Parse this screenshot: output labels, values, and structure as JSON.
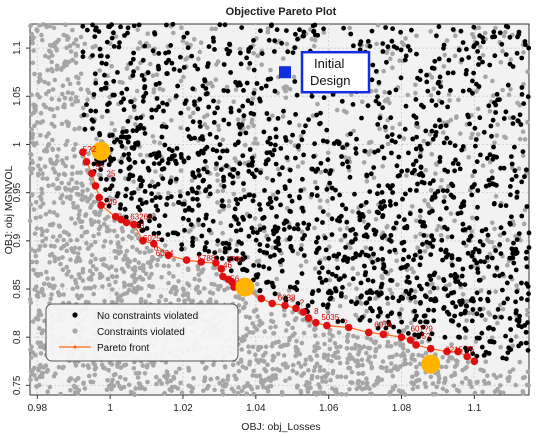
{
  "chart_data": {
    "type": "scatter",
    "title": "Objective Pareto Plot",
    "xlabel": "OBJ: obj_Losses",
    "ylabel": "OBJ: obj MGNVOL",
    "xlim": [
      0.978,
      1.115
    ],
    "ylim": [
      0.74,
      1.125
    ],
    "xticks": [
      0.98,
      1,
      1.02,
      1.04,
      1.06,
      1.08,
      1.1
    ],
    "xtick_labels": [
      "0.98",
      "1",
      "1.02",
      "1.04",
      "1.06",
      "1.08",
      "1.1"
    ],
    "yticks": [
      0.75,
      0.8,
      0.85,
      0.9,
      0.95,
      1,
      1.05,
      1.1
    ],
    "ytick_labels": [
      "0.75",
      "0.8",
      "0.85",
      "0.9",
      "0.95",
      "1",
      "1.05",
      "1.1"
    ],
    "grid": true,
    "legend_position": "bottom-left",
    "colors": {
      "no_violation": "#000000",
      "violated": "#a6a6a6",
      "pareto_line": "#ff6a1a",
      "pareto_points": "#e01010",
      "highlight": "#ffb400",
      "initial_design": "#1030e0",
      "plot_background": "#f2f2f2"
    },
    "series": [
      {
        "name": "No constraints violated",
        "marker": "dot",
        "region": "upper-right of the Pareto front",
        "sample_points": [
          [
            1.0,
            1.02
          ],
          [
            1.02,
            0.98
          ],
          [
            1.03,
            0.95
          ],
          [
            1.05,
            0.92
          ],
          [
            1.07,
            0.9
          ],
          [
            1.09,
            0.88
          ],
          [
            1.1,
            0.85
          ],
          [
            1.06,
            1.0
          ],
          [
            1.08,
            1.05
          ],
          [
            1.1,
            1.1
          ]
        ]
      },
      {
        "name": "Constraints violated",
        "marker": "dot",
        "region": "everywhere, densest below the Pareto front",
        "sample_points": [
          [
            0.985,
            0.98
          ],
          [
            0.99,
            0.9
          ],
          [
            1.0,
            0.85
          ],
          [
            1.02,
            0.8
          ],
          [
            1.05,
            0.77
          ],
          [
            1.08,
            0.76
          ],
          [
            0.99,
            1.08
          ],
          [
            1.01,
            1.05
          ]
        ]
      },
      {
        "name": "Pareto front",
        "marker": "line+dot",
        "points": [
          [
            0.9925,
            0.992
          ],
          [
            0.9935,
            0.982
          ],
          [
            0.995,
            0.97
          ],
          [
            0.996,
            0.957
          ],
          [
            0.997,
            0.945
          ],
          [
            0.9975,
            0.937
          ],
          [
            1.0015,
            0.925
          ],
          [
            1.003,
            0.922
          ],
          [
            1.0045,
            0.919
          ],
          [
            1.0065,
            0.917
          ],
          [
            1.009,
            0.9
          ],
          [
            1.012,
            0.897
          ],
          [
            1.016,
            0.885
          ],
          [
            1.021,
            0.88
          ],
          [
            1.025,
            0.878
          ],
          [
            1.029,
            0.877
          ],
          [
            1.0305,
            0.871
          ],
          [
            1.031,
            0.863
          ],
          [
            1.0325,
            0.86
          ],
          [
            1.0335,
            0.857
          ],
          [
            1.034,
            0.852
          ],
          [
            1.0365,
            0.851
          ],
          [
            1.0415,
            0.84
          ],
          [
            1.0445,
            0.835
          ],
          [
            1.048,
            0.833
          ],
          [
            1.051,
            0.83
          ],
          [
            1.053,
            0.826
          ],
          [
            1.0545,
            0.82
          ],
          [
            1.0565,
            0.815
          ],
          [
            1.0595,
            0.812
          ],
          [
            1.0655,
            0.81
          ],
          [
            1.071,
            0.805
          ],
          [
            1.075,
            0.803
          ],
          [
            1.08,
            0.8
          ],
          [
            1.0825,
            0.797
          ],
          [
            1.084,
            0.792
          ],
          [
            1.088,
            0.788
          ],
          [
            1.0925,
            0.785
          ],
          [
            1.0955,
            0.785
          ],
          [
            1.098,
            0.78
          ],
          [
            1.1,
            0.775
          ]
        ]
      }
    ],
    "highlighted_designs": [
      {
        "x": 0.9975,
        "y": 0.993
      },
      {
        "x": 1.037,
        "y": 0.852
      },
      {
        "x": 1.088,
        "y": 0.772
      }
    ],
    "initial_design": {
      "x": 1.048,
      "y": 1.075,
      "label_line1": "Initial",
      "label_line2": "Design"
    },
    "point_labels": [
      {
        "x": 0.9925,
        "y": 0.992,
        "text": "5?2"
      },
      {
        "x": 0.996,
        "y": 0.974,
        "text": "5?"
      },
      {
        "x": 0.999,
        "y": 0.967,
        "text": "25"
      },
      {
        "x": 0.997,
        "y": 0.937,
        "text": "5249"
      },
      {
        "x": 1.0055,
        "y": 0.922,
        "text": "63268"
      },
      {
        "x": 1.007,
        "y": 0.913,
        "text": "43"
      },
      {
        "x": 1.009,
        "y": 0.9,
        "text": "6025"
      },
      {
        "x": 1.012,
        "y": 0.89,
        "text": "6"
      },
      {
        "x": 1.0125,
        "y": 0.884,
        "text": "6024"
      },
      {
        "x": 1.024,
        "y": 0.879,
        "text": "5788"
      },
      {
        "x": 1.032,
        "y": 0.878,
        "text": "5?80"
      },
      {
        "x": 1.031,
        "y": 0.872,
        "text": "46"
      },
      {
        "x": 1.033,
        "y": 0.858,
        "text": "56"
      },
      {
        "x": 1.046,
        "y": 0.838,
        "text": "6038"
      },
      {
        "x": 1.052,
        "y": 0.833,
        "text": "?"
      },
      {
        "x": 1.056,
        "y": 0.824,
        "text": "8"
      },
      {
        "x": 1.058,
        "y": 0.818,
        "text": "5035"
      },
      {
        "x": 1.064,
        "y": 0.812,
        "text": "?"
      },
      {
        "x": 1.0725,
        "y": 0.81,
        "text": "6074"
      },
      {
        "x": 1.0825,
        "y": 0.806,
        "text": "60??9"
      },
      {
        "x": 1.0855,
        "y": 0.798,
        "text": "5?"
      },
      {
        "x": 1.092,
        "y": 0.784,
        "text": "6215"
      },
      {
        "x": 1.0975,
        "y": 0.784,
        "text": "75"
      }
    ]
  }
}
